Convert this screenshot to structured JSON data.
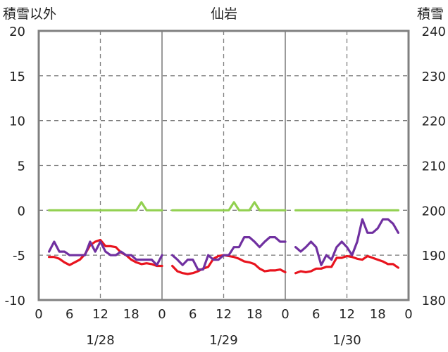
{
  "chart_data": {
    "type": "line",
    "title": "仙岩",
    "left_axis_label": "積雪以外",
    "right_axis_label": "積雪",
    "left_ylim": [
      -10,
      20
    ],
    "left_yticks": [
      "20",
      "15",
      "10",
      "5",
      "0",
      "-5",
      "-10"
    ],
    "right_ylim": [
      180,
      240
    ],
    "right_yticks": [
      "240",
      "230",
      "220",
      "210",
      "200",
      "190",
      "180"
    ],
    "x_range_hours": [
      0,
      72
    ],
    "x_tick_labels": [
      "0",
      "6",
      "12",
      "18",
      "0",
      "6",
      "12",
      "18",
      "0",
      "6",
      "12",
      "18",
      "0"
    ],
    "day_labels": [
      "1/28",
      "1/29",
      "1/30"
    ],
    "grid": "dashed vertical at 12h, solid day separators, dashed horizontal",
    "colors": {
      "red": "#e8141e",
      "purple": "#7030a0",
      "green": "#92d050"
    },
    "series": [
      {
        "color": "red",
        "axis": "left",
        "segments": [
          {
            "x": [
              2,
              3,
              4,
              5,
              6,
              7,
              8,
              9,
              10,
              11,
              12,
              13,
              14,
              15,
              16,
              17,
              18,
              19,
              20,
              21,
              22,
              23,
              24
            ],
            "y": [
              -5.2,
              -5.2,
              -5.4,
              -5.8,
              -6.1,
              -5.8,
              -5.5,
              -4.9,
              -3.9,
              -3.5,
              -3.3,
              -4.0,
              -4.0,
              -4.1,
              -4.7,
              -5.0,
              -5.5,
              -5.8,
              -6.0,
              -5.9,
              -6.0,
              -6.2,
              -6.2
            ]
          },
          {
            "x": [
              26,
              27,
              28,
              29,
              30,
              31,
              32,
              33,
              34,
              35,
              36,
              37,
              38,
              39,
              40,
              41,
              42,
              43,
              44,
              45,
              46,
              47,
              48
            ],
            "y": [
              -6.2,
              -6.8,
              -7.0,
              -7.1,
              -7.0,
              -6.8,
              -6.5,
              -6.3,
              -5.4,
              -5.1,
              -5.0,
              -5.1,
              -5.2,
              -5.4,
              -5.7,
              -5.8,
              -6.0,
              -6.5,
              -6.8,
              -6.7,
              -6.7,
              -6.6,
              -6.9
            ]
          },
          {
            "x": [
              50,
              51,
              52,
              53,
              54,
              55,
              56,
              57,
              58,
              59,
              60,
              61,
              62,
              63,
              64,
              65,
              66,
              67,
              68,
              69,
              70
            ],
            "y": [
              -7.0,
              -6.8,
              -6.9,
              -6.8,
              -6.5,
              -6.5,
              -6.3,
              -6.3,
              -5.3,
              -5.3,
              -5.1,
              -5.2,
              -5.4,
              -5.5,
              -5.1,
              -5.3,
              -5.5,
              -5.7,
              -6.0,
              -6.0,
              -6.4
            ]
          }
        ]
      },
      {
        "color": "purple",
        "axis": "left",
        "segments": [
          {
            "x": [
              2,
              3,
              4,
              5,
              6,
              7,
              8,
              9,
              10,
              11,
              12,
              13,
              14,
              15,
              16,
              17,
              18,
              19,
              20,
              21,
              22,
              23,
              24
            ],
            "y": [
              -4.6,
              -3.5,
              -4.6,
              -4.6,
              -5.0,
              -5.0,
              -5.0,
              -5.0,
              -3.5,
              -4.6,
              -3.5,
              -4.6,
              -5.0,
              -5.0,
              -4.6,
              -5.0,
              -5.0,
              -5.5,
              -5.5,
              -5.5,
              -5.5,
              -6.1,
              -5.0
            ]
          },
          {
            "x": [
              26,
              27,
              28,
              29,
              30,
              31,
              32,
              33,
              34,
              35,
              36,
              37,
              38,
              39,
              40,
              41,
              42,
              43,
              44,
              45,
              46,
              47,
              48
            ],
            "y": [
              -5.0,
              -5.5,
              -6.1,
              -5.5,
              -5.5,
              -6.6,
              -6.6,
              -5.0,
              -5.5,
              -5.5,
              -5.0,
              -5.0,
              -4.1,
              -4.1,
              -3.0,
              -3.0,
              -3.5,
              -4.1,
              -3.5,
              -3.0,
              -3.0,
              -3.5,
              -3.5
            ]
          },
          {
            "x": [
              50,
              51,
              52,
              53,
              54,
              55,
              56,
              57,
              58,
              59,
              60,
              61,
              62,
              63,
              64,
              65,
              66,
              67,
              68,
              69,
              70
            ],
            "y": [
              -4.1,
              -4.6,
              -4.1,
              -3.5,
              -4.1,
              -6.1,
              -5.0,
              -5.5,
              -4.1,
              -3.5,
              -4.1,
              -5.0,
              -3.5,
              -1.0,
              -2.5,
              -2.5,
              -2.0,
              -1.0,
              -1.0,
              -1.5,
              -2.5
            ]
          }
        ]
      },
      {
        "color": "green",
        "axis": "left",
        "segments": [
          {
            "x": [
              2,
              19,
              20,
              21,
              24
            ],
            "y": [
              0,
              0,
              0.9,
              0,
              0
            ]
          },
          {
            "x": [
              26,
              37,
              38,
              39,
              41,
              42,
              43,
              48
            ],
            "y": [
              0,
              0,
              0.9,
              0,
              0,
              0.9,
              0,
              0
            ]
          },
          {
            "x": [
              50,
              70
            ],
            "y": [
              0,
              0
            ]
          }
        ]
      }
    ]
  }
}
